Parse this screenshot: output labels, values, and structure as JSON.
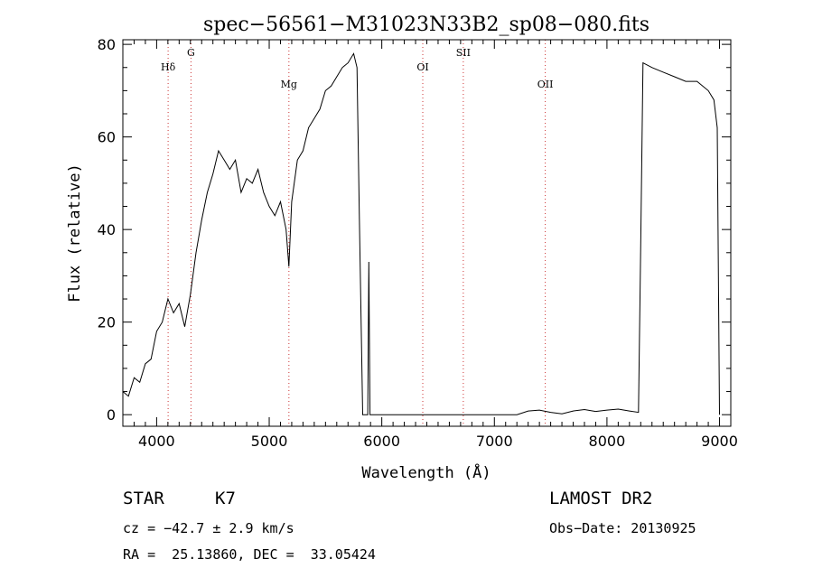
{
  "chart_data": {
    "type": "line",
    "title": "spec−56561−M31023N33B2_sp08−080.fits",
    "xlabel": "Wavelength (Å)",
    "ylabel": "Flux (relative)",
    "xlim": [
      3700,
      9100
    ],
    "ylim": [
      -2.5,
      81
    ],
    "x_ticks": [
      4000,
      5000,
      6000,
      7000,
      8000,
      9000
    ],
    "x_tick_labels": [
      "4000",
      "5000",
      "6000",
      "7000",
      "8000",
      "9000"
    ],
    "y_ticks": [
      0,
      20,
      40,
      60,
      80
    ],
    "y_tick_labels": [
      "0",
      "20",
      "40",
      "60",
      "80"
    ],
    "grid": false,
    "line_color": "#000000",
    "marker_line_color": "#cc3333",
    "lines": [
      {
        "label": "Hδ",
        "wavelength": 4102
      },
      {
        "label": "G",
        "wavelength": 4305
      },
      {
        "label": "Mg",
        "wavelength": 5175
      },
      {
        "label": "OI",
        "wavelength": 6364
      },
      {
        "label": "SII",
        "wavelength": 6724
      },
      {
        "label": "OII",
        "wavelength": 7452
      }
    ],
    "series": [
      {
        "x": [
          3700,
          3750,
          3800,
          3850,
          3900,
          3950,
          4000,
          4050,
          4100,
          4150,
          4200,
          4250,
          4300,
          4350,
          4400,
          4450,
          4500,
          4550,
          4600,
          4650,
          4700,
          4750,
          4800,
          4850,
          4900,
          4950,
          5000,
          5050,
          5100,
          5150,
          5175,
          5200,
          5250,
          5300,
          5350,
          5400,
          5450,
          5500,
          5550,
          5600,
          5650,
          5700,
          5750,
          5780,
          5800,
          5830,
          5860,
          5875,
          5885,
          5895,
          5905,
          5920,
          6000,
          6500,
          7000,
          7200,
          7300,
          7400,
          7500,
          7600,
          7700,
          7800,
          7900,
          8000,
          8100,
          8200,
          8280,
          8300,
          8320,
          8400,
          8500,
          8600,
          8700,
          8800,
          8900,
          8950,
          8980,
          9000
        ],
        "y": [
          5,
          4,
          8,
          7,
          11,
          12,
          18,
          20,
          25,
          22,
          24,
          19,
          26,
          35,
          42,
          48,
          52,
          57,
          55,
          53,
          55,
          48,
          51,
          50,
          53,
          48,
          45,
          43,
          46,
          40,
          32,
          46,
          55,
          57,
          62,
          64,
          66,
          70,
          71,
          73,
          75,
          76,
          78,
          75,
          44,
          0,
          0,
          0,
          33,
          0,
          0,
          0,
          0,
          0,
          0,
          0,
          0.8,
          1.0,
          0.5,
          0.2,
          0.8,
          1.1,
          0.7,
          1.0,
          1.2,
          0.8,
          0.5,
          37,
          76,
          75,
          74,
          73,
          72,
          72,
          70,
          68,
          62,
          0
        ]
      }
    ]
  },
  "info": {
    "object_type": "STAR",
    "subclass": "K7",
    "survey": "LAMOST DR2",
    "redshift": "cz = −42.7 ± 2.9 km/s",
    "obs_date": "Obs−Date: 20130925",
    "coords": "RA =  25.13860, DEC =  33.05424"
  }
}
